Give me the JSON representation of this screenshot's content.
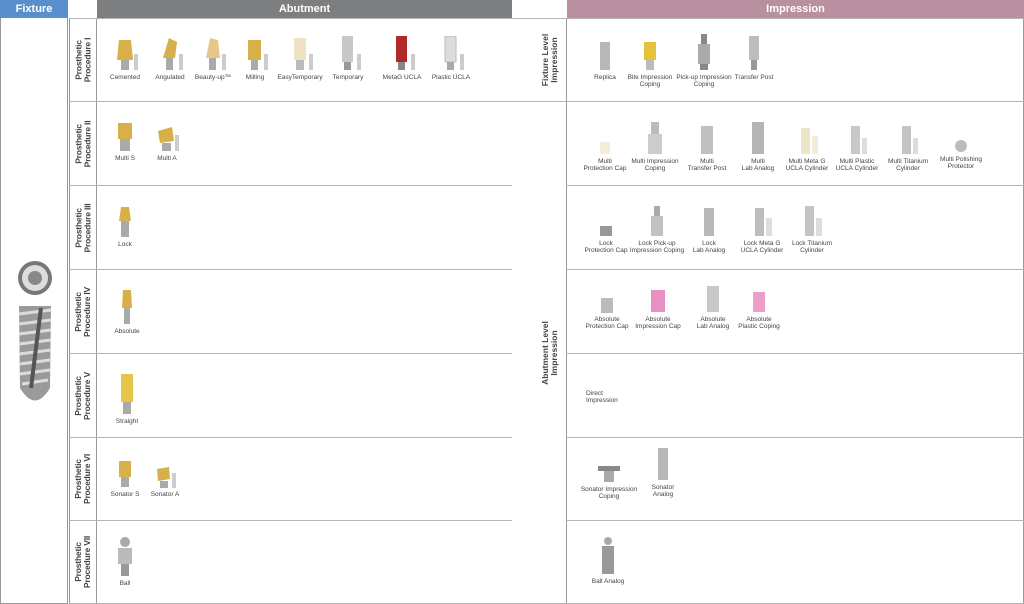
{
  "headers": {
    "fixture": "Fixture",
    "abutment": "Abutment",
    "impression": "Impression"
  },
  "impression_types": {
    "fixture_level": "Fixture Level\nImpression",
    "abutment_level": "Abutment Level\nImpression"
  },
  "procedures": [
    {
      "label": "Prosthetic\nProcedure I"
    },
    {
      "label": "Prosthetic\nProcedure II"
    },
    {
      "label": "Prosthetic\nProcedure III"
    },
    {
      "label": "Prosthetic\nProcedure IV"
    },
    {
      "label": "Prosthetic\nProcedure V"
    },
    {
      "label": "Prosthetic\nProcedure VI"
    },
    {
      "label": "Prosthetic\nProcedure VII"
    }
  ],
  "abutments": {
    "p1": [
      "Cemented",
      "Angulated",
      "Beauty-up™",
      "Milling",
      "EasyTemporary",
      "Temporary",
      "MetaG UCLA",
      "Plastic UCLA"
    ],
    "p2": [
      "Multi S",
      "Multi A"
    ],
    "p3": [
      "Lock"
    ],
    "p4": [
      "Absolute"
    ],
    "p5": [
      "Straight"
    ],
    "p6": [
      "Sonator S",
      "Sonator A"
    ],
    "p7": [
      "Ball"
    ]
  },
  "impressions": {
    "p1": [
      "Replica",
      "Bite Impression\nCoping",
      "Pick-up Impression\nCoping",
      "Transfer Post"
    ],
    "p2": [
      "Multi\nProtection Cap",
      "Multi Impression\nCoping",
      "Multi\nTransfer Post",
      "Multi\nLab Analog",
      "Multi Meta G\nUCLA Cylinder",
      "Multi Plastic\nUCLA Cylinder",
      "Multi Titanium\nCylinder",
      "Multi Polishing\nProtector"
    ],
    "p3": [
      "Lock\nProtection Cap",
      "Lock Pick-up\nImpression Coping",
      "Lock\nLab Analog",
      "Lock Meta G\nUCLA Cylinder",
      "Lock Titanium\nCylinder"
    ],
    "p4": [
      "Absolute\nProtection Cap",
      "Absolute\nImpression Cap",
      "Absolute\nLab Analog",
      "Absolute\nPlastic Coping"
    ],
    "p5_direct": "Direct\nImpression",
    "p6": [
      "Sonator Impression\nCoping",
      "Sonator\nAnalog"
    ],
    "p7": [
      "Ball Analog"
    ]
  },
  "colors": {
    "fixture": "#5a8fcd",
    "abutment": "#7d7e80",
    "impression": "#b9909f",
    "gold": "#d8b04a",
    "silver": "#b8b8b8",
    "ivory": "#efe2c4",
    "pink": "#e98fc3",
    "red": "#b02a2a"
  }
}
